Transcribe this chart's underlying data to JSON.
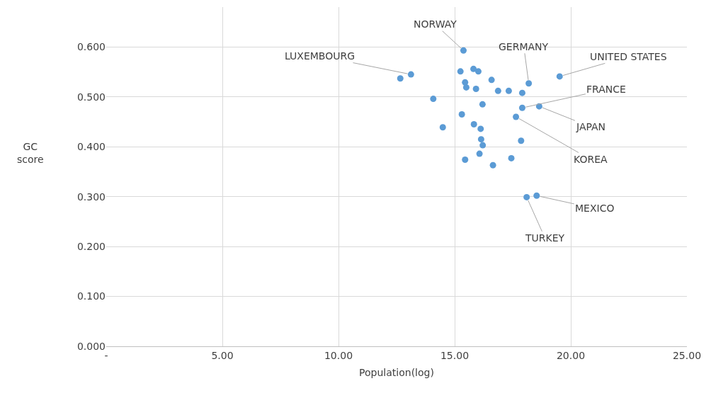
{
  "chart_data": {
    "type": "scatter",
    "xlabel": "Population(log)",
    "ylabel": "GC score",
    "x": [
      15.38,
      12.66,
      13.12,
      15.25,
      15.81,
      16.02,
      16.59,
      18.19,
      19.52,
      15.45,
      15.5,
      15.92,
      16.87,
      17.33,
      17.91,
      14.08,
      16.2,
      17.91,
      18.64,
      15.31,
      17.64,
      14.49,
      15.83,
      16.12,
      16.14,
      16.21,
      17.86,
      16.07,
      15.45,
      17.44,
      16.65,
      18.1,
      18.53
    ],
    "values": [
      0.593,
      0.537,
      0.545,
      0.551,
      0.556,
      0.551,
      0.534,
      0.527,
      0.541,
      0.529,
      0.519,
      0.516,
      0.512,
      0.512,
      0.508,
      0.496,
      0.485,
      0.478,
      0.481,
      0.465,
      0.46,
      0.439,
      0.445,
      0.436,
      0.415,
      0.403,
      0.412,
      0.386,
      0.374,
      0.377,
      0.363,
      0.299,
      0.302
    ],
    "color": "#5b9bd5",
    "marker": "circle",
    "xlim": [
      0,
      25
    ],
    "xticks": [
      {
        "value": 0,
        "label": "-"
      },
      {
        "value": 5,
        "label": "5.00"
      },
      {
        "value": 10,
        "label": "10.00"
      },
      {
        "value": 15,
        "label": "15.00"
      },
      {
        "value": 20,
        "label": "20.00"
      },
      {
        "value": 25,
        "label": "25.00"
      }
    ],
    "ylim": [
      0,
      0.68
    ],
    "yticks": [
      {
        "value": 0,
        "label": "0.000"
      },
      {
        "value": 0.1,
        "label": "0.100"
      },
      {
        "value": 0.2,
        "label": "0.200"
      },
      {
        "value": 0.3,
        "label": "0.300"
      },
      {
        "value": 0.4,
        "label": "0.400"
      },
      {
        "value": 0.5,
        "label": "0.500"
      },
      {
        "value": 0.6,
        "label": "0.600"
      }
    ],
    "grid": true,
    "annotations": [
      {
        "text": "NORWAY",
        "x": 15.38,
        "y": 0.593
      },
      {
        "text": "LUXEMBOURG",
        "x": 13.12,
        "y": 0.545
      },
      {
        "text": "GERMANY",
        "x": 18.19,
        "y": 0.527
      },
      {
        "text": "UNITED STATES",
        "x": 19.52,
        "y": 0.541
      },
      {
        "text": "FRANCE",
        "x": 17.91,
        "y": 0.478
      },
      {
        "text": "JAPAN",
        "x": 18.64,
        "y": 0.481
      },
      {
        "text": "KOREA",
        "x": 17.64,
        "y": 0.46
      },
      {
        "text": "MEXICO",
        "x": 18.53,
        "y": 0.302
      },
      {
        "text": "TURKEY",
        "x": 18.1,
        "y": 0.299
      }
    ]
  }
}
